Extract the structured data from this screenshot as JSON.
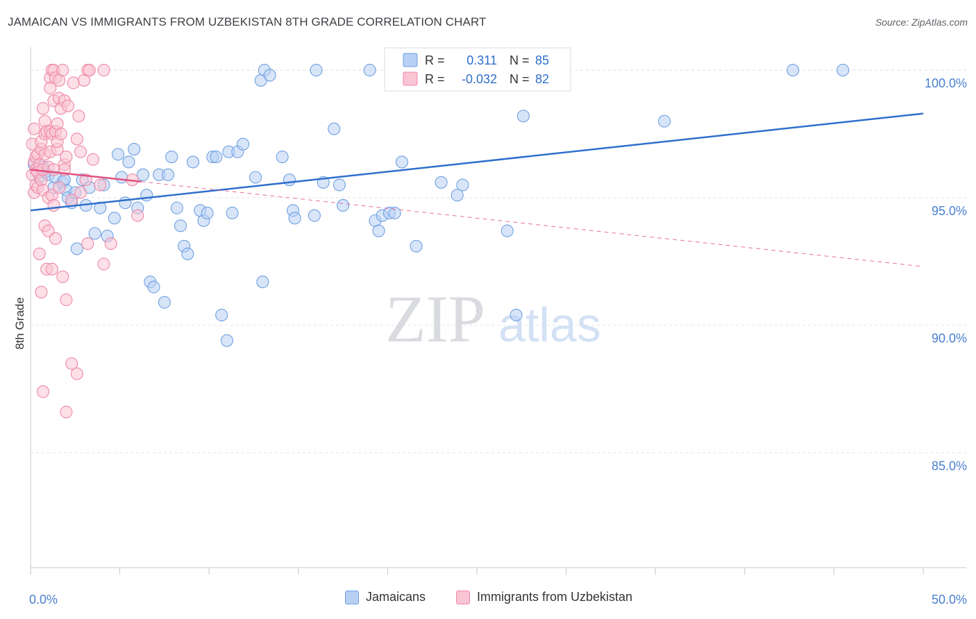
{
  "title": "JAMAICAN VS IMMIGRANTS FROM UZBEKISTAN 8TH GRADE CORRELATION CHART",
  "source": "Source: ZipAtlas.com",
  "watermark": {
    "part1": "ZIP",
    "part2": "atlas"
  },
  "colors": {
    "blue": "#6fa0e0",
    "blue_fill": "#b8d0f4",
    "blue_line": "#2f6fcc",
    "pink": "#ee88a8",
    "pink_fill": "#f9c4d4",
    "pink_line": "#e0507e",
    "axis_text": "#4a7fcf",
    "grid": "#e2e4ea"
  },
  "legend_top": {
    "row1": {
      "r_label": "R =",
      "r_value": "0.311",
      "n_label": "N =",
      "n_value": "85"
    },
    "row2": {
      "r_label": "R =",
      "r_value": "-0.032",
      "n_label": "N =",
      "n_value": "82"
    }
  },
  "chart_data": {
    "type": "scatter",
    "title": "JAMAICAN VS IMMIGRANTS FROM UZBEKISTAN 8TH GRADE CORRELATION CHART",
    "xlabel": "",
    "ylabel": "8th Grade",
    "xlim": [
      0,
      50
    ],
    "ylim": [
      80.5,
      100.9
    ],
    "x_tick_labels": [
      "0.0%",
      "50.0%"
    ],
    "y_ticks": [
      85,
      90,
      95,
      100
    ],
    "y_tick_labels": [
      "85.0%",
      "90.0%",
      "95.0%",
      "100.0%"
    ],
    "grid": true,
    "legend_placement": "bottom-center",
    "series": [
      {
        "name": "Jamaicans",
        "color": "#6fa0e0",
        "R": 0.311,
        "N": 85,
        "trend": {
          "x": [
            0,
            50
          ],
          "y": [
            94.5,
            98.3
          ],
          "style": "solid"
        },
        "points": [
          [
            0.2,
            96.3
          ],
          [
            0.5,
            95.8
          ],
          [
            0.7,
            96.2
          ],
          [
            0.8,
            96.0
          ],
          [
            1.0,
            95.9
          ],
          [
            1.3,
            95.4
          ],
          [
            1.4,
            95.8
          ],
          [
            1.8,
            95.6
          ],
          [
            1.9,
            95.7
          ],
          [
            2.0,
            95.3
          ],
          [
            2.1,
            95.0
          ],
          [
            2.3,
            94.8
          ],
          [
            2.5,
            95.2
          ],
          [
            2.6,
            93.0
          ],
          [
            2.9,
            95.7
          ],
          [
            3.1,
            94.7
          ],
          [
            3.3,
            95.4
          ],
          [
            3.6,
            93.6
          ],
          [
            3.9,
            94.6
          ],
          [
            4.1,
            95.5
          ],
          [
            4.3,
            93.5
          ],
          [
            4.7,
            94.2
          ],
          [
            4.9,
            96.7
          ],
          [
            5.1,
            95.8
          ],
          [
            5.3,
            94.8
          ],
          [
            5.5,
            96.4
          ],
          [
            5.8,
            96.9
          ],
          [
            6.0,
            94.6
          ],
          [
            6.3,
            95.9
          ],
          [
            6.5,
            95.1
          ],
          [
            6.7,
            91.7
          ],
          [
            6.9,
            91.5
          ],
          [
            7.2,
            95.9
          ],
          [
            7.5,
            90.9
          ],
          [
            7.7,
            95.9
          ],
          [
            7.9,
            96.6
          ],
          [
            8.2,
            94.6
          ],
          [
            8.4,
            93.9
          ],
          [
            8.6,
            93.1
          ],
          [
            8.8,
            92.8
          ],
          [
            9.1,
            96.4
          ],
          [
            9.5,
            94.5
          ],
          [
            9.7,
            94.1
          ],
          [
            9.9,
            94.4
          ],
          [
            10.2,
            96.6
          ],
          [
            10.4,
            96.6
          ],
          [
            10.7,
            90.4
          ],
          [
            11.0,
            89.4
          ],
          [
            11.1,
            96.8
          ],
          [
            11.3,
            94.4
          ],
          [
            11.6,
            96.8
          ],
          [
            11.9,
            97.1
          ],
          [
            12.6,
            95.8
          ],
          [
            12.9,
            99.6
          ],
          [
            13.0,
            91.7
          ],
          [
            13.1,
            100.0
          ],
          [
            13.4,
            99.8
          ],
          [
            14.1,
            96.6
          ],
          [
            14.5,
            95.7
          ],
          [
            14.7,
            94.5
          ],
          [
            14.8,
            94.2
          ],
          [
            15.9,
            94.3
          ],
          [
            16.0,
            100.0
          ],
          [
            16.4,
            95.6
          ],
          [
            17.0,
            97.7
          ],
          [
            17.3,
            95.5
          ],
          [
            17.5,
            94.7
          ],
          [
            19.0,
            100.0
          ],
          [
            19.3,
            94.1
          ],
          [
            19.5,
            93.7
          ],
          [
            19.7,
            94.3
          ],
          [
            20.1,
            94.4
          ],
          [
            20.4,
            94.4
          ],
          [
            20.8,
            96.4
          ],
          [
            21.6,
            93.1
          ],
          [
            23.0,
            95.6
          ],
          [
            23.9,
            95.1
          ],
          [
            24.2,
            95.5
          ],
          [
            26.7,
            93.7
          ],
          [
            27.0,
            100.0
          ],
          [
            27.2,
            90.4
          ],
          [
            27.6,
            98.2
          ],
          [
            35.5,
            98.0
          ],
          [
            42.7,
            100.0
          ],
          [
            45.5,
            100.0
          ]
        ]
      },
      {
        "name": "Immigrants from Uzbekistan",
        "color": "#ee88a8",
        "R": -0.032,
        "N": 82,
        "trend": {
          "x": [
            0,
            50
          ],
          "y": [
            96.1,
            92.3
          ],
          "style": "solid-then-dashed",
          "solid_until_x": 6.2
        },
        "points": [
          [
            0.1,
            97.1
          ],
          [
            0.1,
            95.9
          ],
          [
            0.2,
            96.4
          ],
          [
            0.2,
            95.2
          ],
          [
            0.2,
            97.7
          ],
          [
            0.3,
            96.1
          ],
          [
            0.3,
            96.6
          ],
          [
            0.3,
            95.5
          ],
          [
            0.4,
            96.0
          ],
          [
            0.4,
            95.4
          ],
          [
            0.4,
            96.7
          ],
          [
            0.5,
            96.3
          ],
          [
            0.5,
            92.8
          ],
          [
            0.6,
            96.9
          ],
          [
            0.6,
            91.3
          ],
          [
            0.6,
            97.2
          ],
          [
            0.6,
            95.7
          ],
          [
            0.7,
            98.5
          ],
          [
            0.7,
            96.1
          ],
          [
            0.7,
            95.3
          ],
          [
            0.7,
            87.4
          ],
          [
            0.8,
            97.5
          ],
          [
            0.8,
            98.0
          ],
          [
            0.8,
            96.7
          ],
          [
            0.8,
            93.9
          ],
          [
            0.9,
            92.2
          ],
          [
            0.9,
            97.6
          ],
          [
            1.0,
            96.2
          ],
          [
            1.0,
            95.0
          ],
          [
            1.0,
            93.7
          ],
          [
            1.1,
            99.7
          ],
          [
            1.1,
            99.3
          ],
          [
            1.1,
            97.6
          ],
          [
            1.1,
            96.8
          ],
          [
            1.2,
            100.0
          ],
          [
            1.2,
            97.5
          ],
          [
            1.2,
            92.2
          ],
          [
            1.2,
            95.1
          ],
          [
            1.3,
            98.8
          ],
          [
            1.3,
            100.0
          ],
          [
            1.3,
            96.1
          ],
          [
            1.3,
            94.7
          ],
          [
            1.4,
            99.7
          ],
          [
            1.4,
            97.6
          ],
          [
            1.4,
            93.4
          ],
          [
            1.5,
            97.9
          ],
          [
            1.5,
            96.9
          ],
          [
            1.5,
            97.2
          ],
          [
            1.6,
            98.9
          ],
          [
            1.6,
            95.4
          ],
          [
            1.6,
            99.6
          ],
          [
            1.7,
            98.5
          ],
          [
            1.7,
            97.5
          ],
          [
            1.8,
            100.0
          ],
          [
            1.8,
            91.9
          ],
          [
            1.9,
            96.3
          ],
          [
            1.9,
            96.1
          ],
          [
            1.9,
            98.8
          ],
          [
            2.0,
            96.6
          ],
          [
            2.0,
            91.0
          ],
          [
            2.0,
            86.6
          ],
          [
            2.1,
            98.6
          ],
          [
            2.3,
            88.5
          ],
          [
            2.3,
            94.9
          ],
          [
            2.4,
            99.5
          ],
          [
            2.6,
            97.3
          ],
          [
            2.6,
            88.1
          ],
          [
            2.7,
            98.2
          ],
          [
            2.8,
            96.8
          ],
          [
            2.8,
            95.2
          ],
          [
            3.0,
            99.6
          ],
          [
            3.1,
            95.7
          ],
          [
            3.2,
            93.2
          ],
          [
            3.2,
            100.0
          ],
          [
            3.3,
            100.0
          ],
          [
            3.5,
            96.5
          ],
          [
            3.9,
            95.5
          ],
          [
            4.1,
            92.4
          ],
          [
            4.1,
            100.0
          ],
          [
            4.5,
            93.2
          ],
          [
            5.7,
            95.7
          ],
          [
            6.0,
            94.3
          ]
        ]
      }
    ]
  }
}
